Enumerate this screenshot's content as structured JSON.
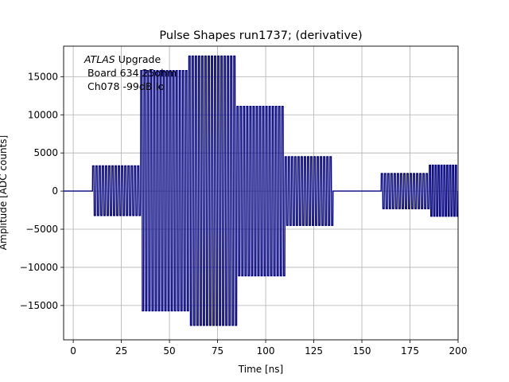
{
  "chart_data": {
    "type": "line",
    "title": "Pulse Shapes run1737; (derivative)",
    "xlabel": "Time [ns]",
    "ylabel": "Amplitude [ADC counts]",
    "xlim": [
      -5,
      200
    ],
    "ylim": [
      -19500,
      19000
    ],
    "xticks": [
      0,
      25,
      50,
      75,
      100,
      125,
      150,
      175,
      200
    ],
    "yticks": [
      -15000,
      -10000,
      -5000,
      0,
      5000,
      10000,
      15000
    ],
    "xtick_labels": [
      "0",
      "25",
      "50",
      "75",
      "100",
      "125",
      "150",
      "175",
      "200"
    ],
    "ytick_labels": [
      "−15000",
      "−10000",
      "−5000",
      "0",
      "5000",
      "10000",
      "15000"
    ],
    "grid": true,
    "line_color": "#000080",
    "annotation": {
      "prefix": "ATLAS",
      "suffix": " Upgrade",
      "line2": " Board 634 25ohm",
      "line3": " Ch078 -99dB lo"
    },
    "segments": [
      {
        "start": 10,
        "end": 35,
        "amp_pos": 3300,
        "amp_neg": -3200,
        "count": 15
      },
      {
        "start": 35,
        "end": 60,
        "amp_pos": 15800,
        "amp_neg": -15700,
        "count": 15
      },
      {
        "start": 60,
        "end": 85,
        "amp_pos": 17700,
        "amp_neg": -17600,
        "count": 15
      },
      {
        "start": 85,
        "end": 110,
        "amp_pos": 11100,
        "amp_neg": -11100,
        "count": 15
      },
      {
        "start": 110,
        "end": 135,
        "amp_pos": 4500,
        "amp_neg": -4500,
        "count": 15
      },
      {
        "start": 160,
        "end": 185,
        "amp_pos": 2300,
        "amp_neg": -2300,
        "count": 15
      },
      {
        "start": 185,
        "end": 200,
        "amp_pos": 3400,
        "amp_neg": -3300,
        "count": 10
      }
    ],
    "baseline": 0
  }
}
